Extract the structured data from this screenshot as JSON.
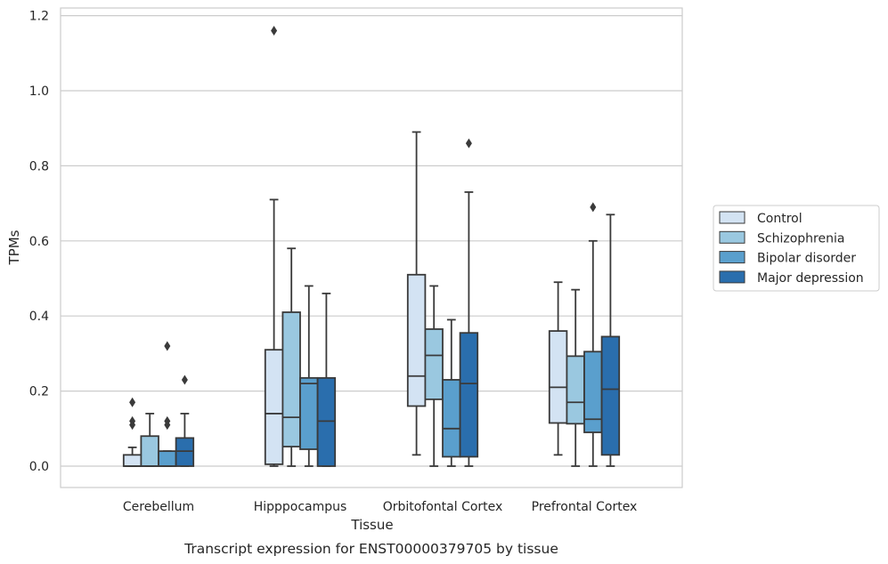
{
  "chart_data": {
    "type": "box",
    "title": "",
    "caption": "Transcript expression for ENST00000379705 by tissue",
    "xlabel": "Tissue",
    "ylabel": "TPMs",
    "ylim": [
      -0.055,
      1.22
    ],
    "yticks": [
      "0.0",
      "0.2",
      "0.4",
      "0.6",
      "0.8",
      "1.0",
      "1.2"
    ],
    "grid": "horizontal",
    "legend_placement": "right-outside",
    "categories": [
      "Cerebellum",
      "Hipppocampus",
      "Orbitofontal Cortex",
      "Prefrontal Cortex"
    ],
    "series": [
      {
        "name": "Control",
        "color": "#d3e3f3",
        "boxes": [
          {
            "whislo": 0.0,
            "q1": 0.0,
            "med": 0.0,
            "q3": 0.03,
            "whishi": 0.05,
            "fliers": [
              0.11,
              0.12,
              0.17
            ]
          },
          {
            "whislo": 0.0,
            "q1": 0.005,
            "med": 0.14,
            "q3": 0.31,
            "whishi": 0.71,
            "fliers": [
              1.16
            ]
          },
          {
            "whislo": 0.03,
            "q1": 0.16,
            "med": 0.24,
            "q3": 0.51,
            "whishi": 0.89,
            "fliers": []
          },
          {
            "whislo": 0.03,
            "q1": 0.115,
            "med": 0.21,
            "q3": 0.36,
            "whishi": 0.49,
            "fliers": []
          }
        ]
      },
      {
        "name": "Schizophrenia",
        "color": "#9ac8e0",
        "boxes": [
          {
            "whislo": 0.0,
            "q1": 0.0,
            "med": 0.0,
            "q3": 0.08,
            "whishi": 0.14,
            "fliers": []
          },
          {
            "whislo": 0.0,
            "q1": 0.052,
            "med": 0.13,
            "q3": 0.41,
            "whishi": 0.58,
            "fliers": []
          },
          {
            "whislo": 0.0,
            "q1": 0.178,
            "med": 0.295,
            "q3": 0.365,
            "whishi": 0.48,
            "fliers": []
          },
          {
            "whislo": 0.0,
            "q1": 0.113,
            "med": 0.17,
            "q3": 0.293,
            "whishi": 0.47,
            "fliers": []
          }
        ]
      },
      {
        "name": "Bipolar disorder",
        "color": "#5a9fcd",
        "boxes": [
          {
            "whislo": 0.0,
            "q1": 0.0,
            "med": 0.0,
            "q3": 0.04,
            "whishi": 0.04,
            "fliers": [
              0.11,
              0.12,
              0.32
            ]
          },
          {
            "whislo": 0.0,
            "q1": 0.045,
            "med": 0.22,
            "q3": 0.235,
            "whishi": 0.48,
            "fliers": []
          },
          {
            "whislo": 0.0,
            "q1": 0.025,
            "med": 0.1,
            "q3": 0.23,
            "whishi": 0.39,
            "fliers": []
          },
          {
            "whislo": 0.0,
            "q1": 0.09,
            "med": 0.125,
            "q3": 0.305,
            "whishi": 0.6,
            "fliers": [
              0.69
            ]
          }
        ]
      },
      {
        "name": "Major depression",
        "color": "#2a6ead",
        "boxes": [
          {
            "whislo": 0.0,
            "q1": 0.0,
            "med": 0.04,
            "q3": 0.075,
            "whishi": 0.14,
            "fliers": [
              0.23
            ]
          },
          {
            "whislo": 0.0,
            "q1": 0.0,
            "med": 0.12,
            "q3": 0.235,
            "whishi": 0.46,
            "fliers": []
          },
          {
            "whislo": 0.0,
            "q1": 0.025,
            "med": 0.22,
            "q3": 0.355,
            "whishi": 0.73,
            "fliers": [
              0.86
            ]
          },
          {
            "whislo": 0.0,
            "q1": 0.03,
            "med": 0.205,
            "q3": 0.345,
            "whishi": 0.67,
            "fliers": []
          }
        ]
      }
    ]
  }
}
